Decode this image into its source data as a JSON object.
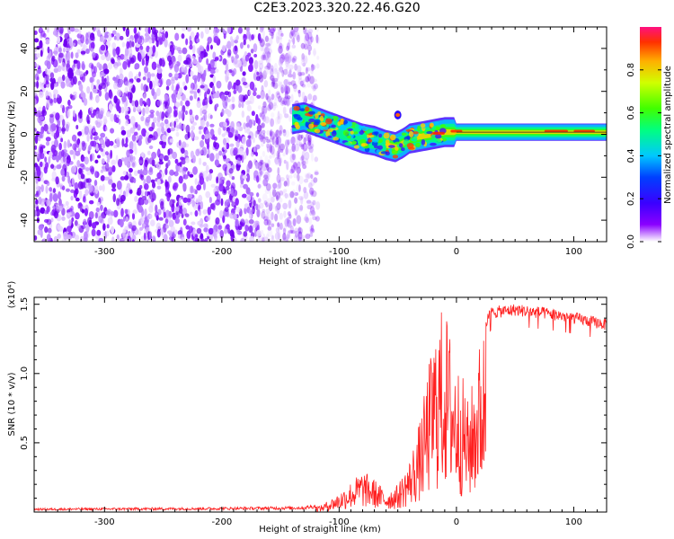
{
  "title": "C2E3.2023.320.22.46.G20",
  "colors": {
    "snr_line": "#ff2020",
    "grid_frame": "#000000",
    "colormap": [
      "#ffffff",
      "#8a00ff",
      "#3a00ff",
      "#0040ff",
      "#00c8ff",
      "#00ff80",
      "#40ff00",
      "#d0ff00",
      "#ffb000",
      "#ff3000",
      "#ff1080"
    ]
  },
  "chart_data": [
    {
      "type": "heatmap",
      "name": "spectrogram",
      "xlabel": "Height of straight line (km)",
      "ylabel": "Frequency (Hz)",
      "xlim": [
        -360,
        128
      ],
      "ylim": [
        -50,
        50
      ],
      "xticks": [
        -300,
        -200,
        -100,
        0,
        100
      ],
      "xtick_labels": [
        "-300",
        "-200",
        "-100",
        "0",
        "100"
      ],
      "yticks": [
        -40,
        -20,
        0,
        20,
        40
      ],
      "ytick_labels": [
        "-40",
        "-20",
        "0",
        "20",
        "40"
      ],
      "colorbar": {
        "label": "Normalized spectral amplitude",
        "range": [
          0,
          1
        ],
        "ticks": [
          0.0,
          0.2,
          0.4,
          0.6,
          0.8
        ],
        "tick_labels": [
          "0.0",
          "0.2",
          "0.4",
          "0.6",
          "0.8"
        ]
      },
      "regions": {
        "noise_x": [
          -360,
          -128
        ],
        "signal_track": [
          [
            -140,
            7
          ],
          [
            -130,
            8
          ],
          [
            -120,
            6
          ],
          [
            -110,
            4
          ],
          [
            -100,
            2
          ],
          [
            -90,
            0
          ],
          [
            -80,
            -2
          ],
          [
            -70,
            -3
          ],
          [
            -60,
            -5
          ],
          [
            -52,
            -6
          ],
          [
            -45,
            -4
          ],
          [
            -40,
            -2
          ],
          [
            -30,
            -1
          ],
          [
            -20,
            0
          ],
          [
            -10,
            1
          ],
          [
            0,
            1
          ],
          [
            20,
            1
          ],
          [
            50,
            1
          ],
          [
            80,
            1
          ],
          [
            100,
            1
          ],
          [
            128,
            1
          ]
        ],
        "secondary_blob": [
          -50,
          9
        ]
      }
    },
    {
      "type": "line",
      "name": "snr",
      "xlabel": "Height of straight line (km)",
      "ylabel": "SNR (10 * v/v)",
      "y_multiplier_label": "(x10⁴)",
      "xlim": [
        -360,
        128
      ],
      "ylim": [
        0,
        15500
      ],
      "xticks": [
        -300,
        -200,
        -100,
        0,
        100
      ],
      "xtick_labels": [
        "-300",
        "-200",
        "-100",
        "0",
        "100"
      ],
      "yticks": [
        5000,
        10000,
        15000
      ],
      "ytick_labels": [
        "0.5",
        "1.0",
        "1.5"
      ],
      "envelope": [
        [
          -360,
          200
        ],
        [
          -200,
          250
        ],
        [
          -130,
          300
        ],
        [
          -115,
          500
        ],
        [
          -100,
          1400
        ],
        [
          -90,
          2200
        ],
        [
          -80,
          3000
        ],
        [
          -70,
          2400
        ],
        [
          -60,
          1500
        ],
        [
          -50,
          2000
        ],
        [
          -40,
          3800
        ],
        [
          -30,
          7000
        ],
        [
          -25,
          10000
        ],
        [
          -20,
          12500
        ],
        [
          -15,
          14500
        ],
        [
          -10,
          15000
        ],
        [
          -5,
          13000
        ],
        [
          0,
          11000
        ],
        [
          5,
          10000
        ],
        [
          10,
          8000
        ],
        [
          15,
          10000
        ],
        [
          20,
          12500
        ],
        [
          25,
          14000
        ],
        [
          30,
          14700
        ],
        [
          50,
          14900
        ],
        [
          80,
          14600
        ],
        [
          100,
          14300
        ],
        [
          128,
          13800
        ]
      ]
    }
  ]
}
